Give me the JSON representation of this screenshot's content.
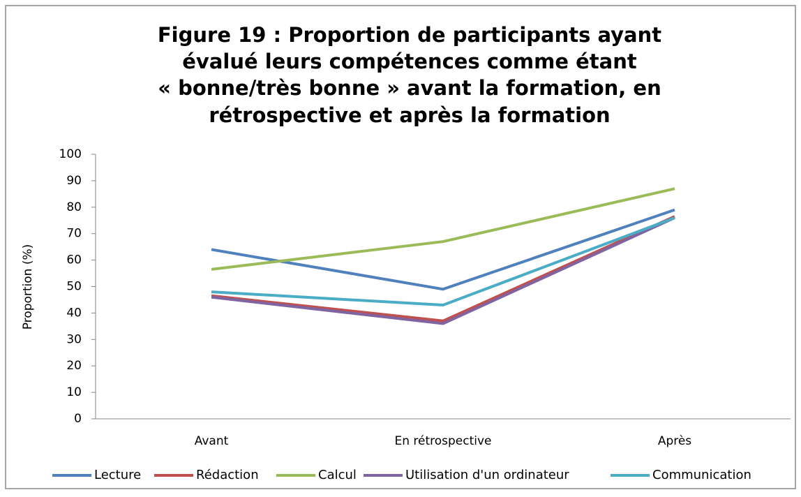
{
  "chart_data": {
    "type": "line",
    "title": [
      "Figure 19 : Proportion de participants ayant",
      "évalué leurs compétences comme étant",
      "« bonne/très bonne » avant la formation, en",
      "rétrospective et après la formation"
    ],
    "y_label": "Proportion (%)",
    "categories": [
      "Avant",
      "En rétrospective",
      "Après"
    ],
    "series": [
      {
        "name": "Lecture",
        "color": "#4f81bd",
        "values": [
          64,
          49,
          79
        ]
      },
      {
        "name": "Rédaction",
        "color": "#c0504d",
        "values": [
          46.5,
          37,
          76.5
        ]
      },
      {
        "name": "Calcul",
        "color": "#9bbb59",
        "values": [
          56.5,
          67,
          87
        ]
      },
      {
        "name": "Utilisation d'un ordinateur",
        "color": "#8064a2",
        "values": [
          46,
          36,
          76
        ]
      },
      {
        "name": "Communication",
        "color": "#4bacc6",
        "values": [
          48,
          43,
          76
        ]
      }
    ],
    "ylim": [
      0,
      100
    ],
    "yticks": [
      0,
      10,
      20,
      30,
      40,
      50,
      60,
      70,
      80,
      90,
      100
    ],
    "legend": "bottom"
  }
}
